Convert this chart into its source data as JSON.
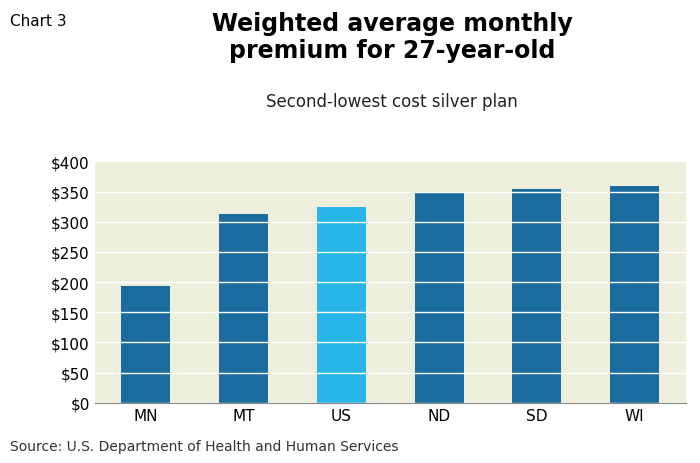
{
  "categories": [
    "MN",
    "MT",
    "US",
    "ND",
    "SD",
    "WI"
  ],
  "values": [
    193,
    313,
    325,
    350,
    355,
    360
  ],
  "bar_colors": [
    "#1a6b9e",
    "#1a6b9e",
    "#29b5e8",
    "#1a6b9e",
    "#1a6b9e",
    "#1a6b9e"
  ],
  "title_line1": "Weighted average monthly",
  "title_line2": "premium for 27-year-old",
  "subtitle": "Second-lowest cost silver plan",
  "chart_label": "Chart 3",
  "source": "Source: U.S. Department of Health and Human Services",
  "ylim": [
    0,
    400
  ],
  "yticks": [
    0,
    50,
    100,
    150,
    200,
    250,
    300,
    350,
    400
  ],
  "plot_bg_color": "#eeeedd",
  "title_fontsize": 17,
  "subtitle_fontsize": 12,
  "tick_fontsize": 11,
  "source_fontsize": 10,
  "chart_label_fontsize": 11,
  "bar_width": 0.5
}
